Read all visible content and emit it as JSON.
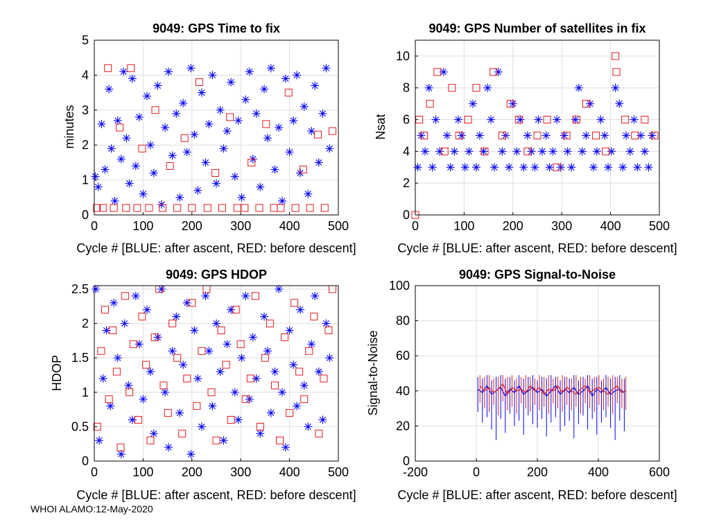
{
  "footer": "WHOI ALAMO:12-May-2020",
  "colors": {
    "after_ascent": "#0000ff",
    "before_descent": "#e31a1c",
    "grid": "#dedede",
    "axis": "#000000"
  },
  "chart_data": [
    {
      "id": "time_to_fix",
      "type": "scatter",
      "title": "9049: GPS Time to fix",
      "xlabel": "Cycle #  [BLUE: after ascent, RED: before descent]",
      "ylabel": "minutes",
      "xlim": [
        0,
        500
      ],
      "ylim": [
        0,
        5
      ],
      "xticks": [
        0,
        100,
        200,
        300,
        400,
        500
      ],
      "xtick_labels": [
        "0",
        "100",
        "200",
        "300",
        "400",
        "500"
      ],
      "yticks": [
        0,
        1,
        2,
        3,
        4,
        5
      ],
      "ytick_labels": [
        "0",
        "1",
        "2",
        "3",
        "4",
        "5"
      ],
      "grid": true,
      "series": [
        {
          "name": "after ascent",
          "color": "#0000ff",
          "marker": "asterisk",
          "x": [
            2,
            8,
            15,
            22,
            30,
            35,
            42,
            48,
            55,
            60,
            66,
            72,
            78,
            85,
            92,
            100,
            108,
            115,
            122,
            130,
            138,
            145,
            152,
            160,
            168,
            175,
            182,
            190,
            198,
            205,
            212,
            220,
            228,
            235,
            242,
            250,
            258,
            265,
            272,
            280,
            288,
            295,
            302,
            310,
            318,
            325,
            332,
            340,
            348,
            355,
            362,
            370,
            378,
            385,
            392,
            400,
            408,
            415,
            422,
            430,
            438,
            445,
            452,
            460,
            468,
            475,
            482
          ],
          "y": [
            1.1,
            0.8,
            2.6,
            1.3,
            3.6,
            1.9,
            0.4,
            2.7,
            1.6,
            4.1,
            2.2,
            0.9,
            3.9,
            1.4,
            2.8,
            0.6,
            3.4,
            2.0,
            1.2,
            3.7,
            0.3,
            2.5,
            4.1,
            1.7,
            2.9,
            0.5,
            3.2,
            1.8,
            4.2,
            2.3,
            0.7,
            3.5,
            1.5,
            2.6,
            4.0,
            0.9,
            3.0,
            1.9,
            2.4,
            3.8,
            1.1,
            2.7,
            0.5,
            3.3,
            4.1,
            1.6,
            2.9,
            0.8,
            3.6,
            2.2,
            4.2,
            1.3,
            2.5,
            0.4,
            3.9,
            1.8,
            2.7,
            4.0,
            1.2,
            3.1,
            0.6,
            2.4,
            3.7,
            1.5,
            2.9,
            4.2,
            1.9
          ]
        },
        {
          "name": "before descent",
          "color": "#e31a1c",
          "marker": "square",
          "x": [
            5,
            18,
            28,
            40,
            52,
            65,
            75,
            88,
            98,
            112,
            125,
            140,
            155,
            170,
            185,
            200,
            215,
            232,
            248,
            262,
            278,
            293,
            308,
            322,
            338,
            352,
            368,
            382,
            398,
            412,
            428,
            442,
            458,
            472,
            488
          ],
          "y": [
            0.2,
            0.2,
            4.2,
            0.2,
            2.5,
            0.2,
            4.2,
            0.2,
            1.9,
            0.2,
            3.0,
            0.2,
            1.4,
            0.2,
            2.2,
            0.2,
            3.8,
            0.2,
            1.2,
            0.2,
            2.8,
            0.2,
            0.2,
            1.5,
            0.2,
            2.6,
            0.2,
            0.2,
            3.5,
            0.2,
            1.3,
            0.2,
            2.3,
            0.2,
            2.4
          ]
        }
      ]
    },
    {
      "id": "num_satellites",
      "type": "scatter",
      "title": "9049: GPS Number of satellites in fix",
      "xlabel": "Cycle #  [BLUE: after ascent, RED: before descent]",
      "ylabel": "Nsat",
      "xlim": [
        0,
        500
      ],
      "ylim": [
        0,
        11
      ],
      "xticks": [
        0,
        100,
        200,
        300,
        400,
        500
      ],
      "xtick_labels": [
        "0",
        "100",
        "200",
        "300",
        "400",
        "500"
      ],
      "yticks": [
        0,
        2,
        4,
        6,
        8,
        10
      ],
      "ytick_labels": [
        "0",
        "2",
        "4",
        "6",
        "8",
        "10"
      ],
      "grid": true,
      "series": [
        {
          "name": "after ascent",
          "color": "#0000ff",
          "marker": "asterisk",
          "x": [
            5,
            12,
            20,
            28,
            35,
            42,
            50,
            58,
            65,
            72,
            80,
            88,
            95,
            102,
            110,
            118,
            125,
            132,
            140,
            148,
            155,
            162,
            170,
            178,
            185,
            192,
            200,
            208,
            215,
            222,
            230,
            238,
            245,
            252,
            260,
            268,
            275,
            282,
            290,
            298,
            305,
            312,
            320,
            328,
            335,
            342,
            350,
            358,
            365,
            372,
            380,
            388,
            395,
            402,
            410,
            418,
            425,
            432,
            440,
            448,
            455,
            462,
            470,
            478,
            485
          ],
          "y": [
            3,
            5,
            4,
            8,
            3,
            6,
            4,
            9,
            5,
            3,
            4,
            6,
            5,
            3,
            4,
            7,
            3,
            5,
            4,
            8,
            6,
            3,
            9,
            4,
            5,
            3,
            7,
            4,
            6,
            3,
            5,
            4,
            3,
            6,
            4,
            5,
            3,
            4,
            6,
            3,
            5,
            4,
            3,
            6,
            8,
            4,
            5,
            7,
            3,
            4,
            6,
            5,
            3,
            4,
            8,
            7,
            3,
            5,
            4,
            6,
            3,
            5,
            4,
            3,
            5
          ]
        },
        {
          "name": "before descent",
          "color": "#e31a1c",
          "marker": "square",
          "x": [
            0,
            8,
            18,
            30,
            45,
            60,
            75,
            90,
            108,
            125,
            142,
            160,
            178,
            195,
            212,
            230,
            250,
            270,
            290,
            310,
            330,
            350,
            370,
            390,
            410,
            412,
            430,
            450,
            470,
            490
          ],
          "y": [
            0,
            6,
            5,
            7,
            9,
            4,
            8,
            5,
            6,
            8,
            4,
            9,
            5,
            7,
            6,
            4,
            5,
            6,
            3,
            5,
            6,
            7,
            5,
            4,
            10,
            9,
            6,
            5,
            6,
            5
          ]
        }
      ]
    },
    {
      "id": "hdop",
      "type": "scatter",
      "title": "9049: GPS HDOP",
      "xlabel": "Cycle #  [BLUE: after ascent, RED: before descent]",
      "ylabel": "HDOP",
      "xlim": [
        0,
        500
      ],
      "ylim": [
        0,
        2.55
      ],
      "xticks": [
        0,
        100,
        200,
        300,
        400,
        500
      ],
      "xtick_labels": [
        "0",
        "100",
        "200",
        "300",
        "400",
        "500"
      ],
      "yticks": [
        0,
        0.5,
        1,
        1.5,
        2,
        2.5
      ],
      "ytick_labels": [
        "0",
        "0.5",
        "1",
        "1.5",
        "2",
        "2.5"
      ],
      "grid": true,
      "series": [
        {
          "name": "after ascent",
          "color": "#0000ff",
          "marker": "asterisk",
          "x": [
            3,
            10,
            18,
            25,
            33,
            40,
            48,
            55,
            62,
            70,
            78,
            85,
            92,
            100,
            108,
            115,
            122,
            130,
            138,
            145,
            152,
            160,
            168,
            175,
            182,
            190,
            198,
            205,
            212,
            220,
            228,
            235,
            242,
            250,
            258,
            265,
            272,
            280,
            288,
            295,
            302,
            310,
            318,
            325,
            332,
            340,
            348,
            355,
            362,
            370,
            378,
            385,
            392,
            400,
            408,
            415,
            422,
            430,
            438,
            445,
            452,
            460,
            468,
            475,
            482
          ],
          "y": [
            2.5,
            0.3,
            1.2,
            1.9,
            0.8,
            2.3,
            1.5,
            0.1,
            2.0,
            1.1,
            0.6,
            2.4,
            1.7,
            0.9,
            2.2,
            1.3,
            0.4,
            1.8,
            2.5,
            1.0,
            0.2,
            1.6,
            2.1,
            0.7,
            1.4,
            2.3,
            0.1,
            1.9,
            1.2,
            0.5,
            2.4,
            1.6,
            0.8,
            2.0,
            1.3,
            0.3,
            1.7,
            2.2,
            1.0,
            0.6,
            1.5,
            2.4,
            0.9,
            1.8,
            1.2,
            0.4,
            2.1,
            1.6,
            0.7,
            1.3,
            2.5,
            1.0,
            0.2,
            1.9,
            1.4,
            0.8,
            2.2,
            1.1,
            0.5,
            1.7,
            2.4,
            1.3,
            0.6,
            2.0,
            1.5
          ]
        },
        {
          "name": "before descent",
          "color": "#e31a1c",
          "marker": "square",
          "x": [
            6,
            14,
            22,
            30,
            38,
            46,
            54,
            63,
            72,
            80,
            90,
            98,
            106,
            115,
            124,
            133,
            142,
            151,
            160,
            170,
            180,
            190,
            200,
            210,
            220,
            230,
            240,
            250,
            260,
            270,
            280,
            290,
            300,
            310,
            320,
            330,
            340,
            350,
            360,
            370,
            380,
            390,
            400,
            410,
            420,
            430,
            440,
            450,
            460,
            470,
            480,
            488
          ],
          "y": [
            0.5,
            1.6,
            2.2,
            0.9,
            1.9,
            1.3,
            0.2,
            2.4,
            1.0,
            1.7,
            0.6,
            2.1,
            1.4,
            0.3,
            1.8,
            2.5,
            1.1,
            0.7,
            2.0,
            1.5,
            0.4,
            1.2,
            2.3,
            0.8,
            1.6,
            2.5,
            1.0,
            0.3,
            1.9,
            1.4,
            0.6,
            2.2,
            1.7,
            0.9,
            1.2,
            2.4,
            0.5,
            1.5,
            2.0,
            1.1,
            0.3,
            1.8,
            0.7,
            2.3,
            1.3,
            0.9,
            1.6,
            2.1,
            0.4,
            1.2,
            1.9,
            2.5
          ]
        }
      ]
    },
    {
      "id": "snr",
      "type": "line",
      "title": "9049: GPS Signal-to-Noise",
      "xlabel": "Cycle #  [BLUE: after ascent, RED: before descent]",
      "ylabel": "Signal-to-Noise",
      "xlim": [
        -200,
        600
      ],
      "ylim": [
        0,
        100
      ],
      "xticks": [
        -200,
        0,
        200,
        400,
        600
      ],
      "xtick_labels": [
        "-200",
        "0",
        "200",
        "400",
        "600"
      ],
      "yticks": [
        0,
        20,
        40,
        60,
        80,
        100
      ],
      "ytick_labels": [
        "0",
        "20",
        "40",
        "60",
        "80",
        "100"
      ],
      "grid": true,
      "series": [
        {
          "name": "after ascent",
          "color": "#0000ff",
          "marker": "errorbar",
          "x": [
            5,
            20,
            35,
            50,
            65,
            80,
            95,
            110,
            125,
            140,
            155,
            170,
            185,
            200,
            215,
            230,
            245,
            260,
            275,
            290,
            305,
            320,
            335,
            350,
            365,
            380,
            395,
            410,
            425,
            440,
            455,
            470,
            485
          ],
          "y": [
            41,
            39,
            43,
            38,
            40,
            42,
            37,
            41,
            39,
            43,
            38,
            40,
            42,
            39,
            41,
            37,
            40,
            43,
            38,
            41,
            39,
            42,
            38,
            40,
            43,
            37,
            41,
            39,
            42,
            38,
            40,
            41,
            39
          ],
          "low": [
            28,
            22,
            25,
            18,
            12,
            24,
            16,
            27,
            20,
            23,
            15,
            26,
            21,
            19,
            24,
            14,
            22,
            25,
            17,
            20,
            23,
            13,
            21,
            26,
            18,
            24,
            15,
            22,
            25,
            19,
            12,
            23,
            17
          ],
          "high": [
            48,
            47,
            49,
            46,
            48,
            49,
            47,
            48,
            46,
            49,
            47,
            48,
            49,
            46,
            48,
            47,
            49,
            48,
            46,
            48,
            47,
            49,
            46,
            48,
            49,
            47,
            48,
            46,
            49,
            47,
            48,
            49,
            47
          ]
        },
        {
          "name": "before descent",
          "color": "#e31a1c",
          "marker": "errorbar",
          "x": [
            12,
            27,
            42,
            57,
            72,
            87,
            102,
            117,
            132,
            147,
            162,
            177,
            192,
            207,
            222,
            237,
            252,
            267,
            282,
            297,
            312,
            327,
            342,
            357,
            372,
            387,
            402,
            417,
            432,
            447,
            462,
            477,
            490
          ],
          "y": [
            43,
            40,
            42,
            39,
            41,
            44,
            38,
            42,
            40,
            41,
            39,
            43,
            40,
            42,
            38,
            41,
            40,
            43,
            39,
            42,
            40,
            38,
            41,
            43,
            39,
            41,
            42,
            40,
            38,
            41,
            43,
            39,
            40
          ],
          "low": [
            33,
            30,
            28,
            32,
            26,
            34,
            29,
            31,
            27,
            33,
            30,
            28,
            32,
            29,
            31,
            27,
            33,
            30,
            28,
            32,
            29,
            31,
            27,
            33,
            30,
            28,
            32,
            29,
            31,
            27,
            33,
            30,
            29
          ],
          "high": [
            49,
            48,
            49,
            47,
            48,
            49,
            48,
            49,
            47,
            48,
            49,
            48,
            47,
            49,
            48,
            49,
            47,
            48,
            49,
            48,
            47,
            49,
            48,
            47,
            49,
            48,
            49,
            47,
            48,
            49,
            48,
            47,
            48
          ]
        }
      ]
    }
  ]
}
